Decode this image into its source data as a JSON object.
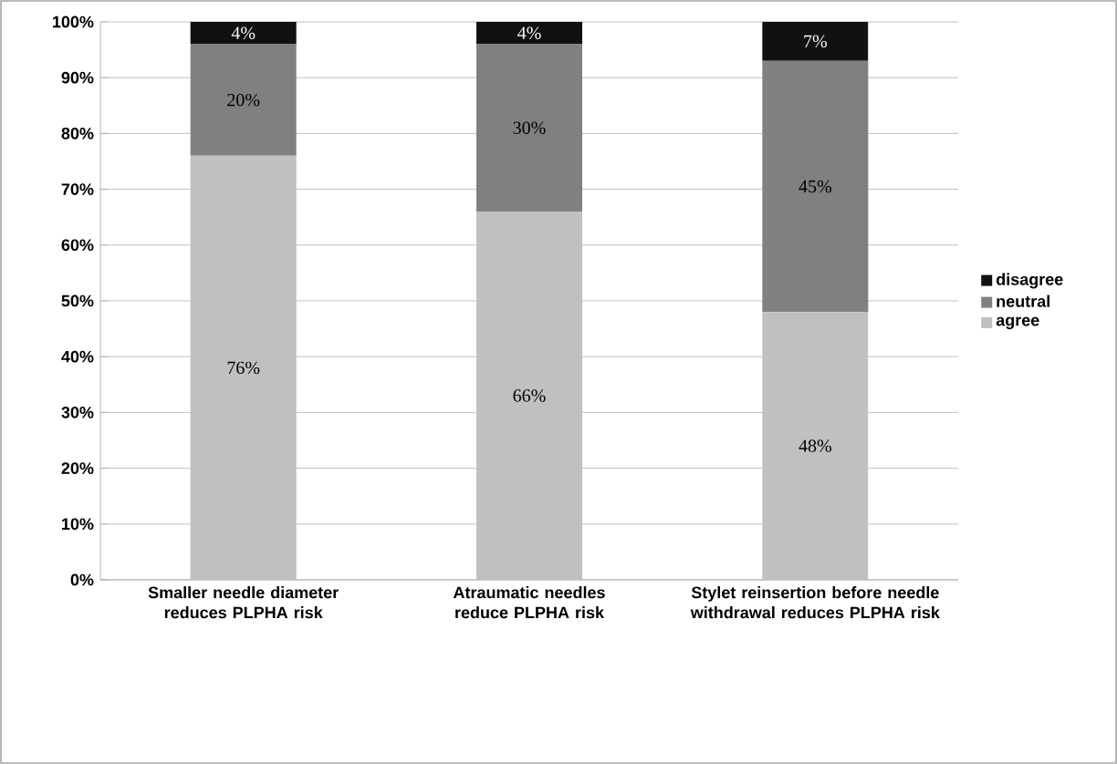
{
  "chart_data": {
    "type": "bar",
    "stacked": true,
    "categories": [
      "Smaller needle diameter reduces PLPHA risk",
      "Atraumatic needles reduce PLPHA risk",
      "Stylet reinsertion before needle withdrawal reduces PLPHA risk"
    ],
    "series": [
      {
        "name": "agree",
        "color": "#c0c0c0",
        "values": [
          76,
          66,
          48
        ],
        "value_labels": [
          "76%",
          "66%",
          "48%"
        ]
      },
      {
        "name": "neutral",
        "color": "#808080",
        "values": [
          20,
          30,
          45
        ],
        "value_labels": [
          "20%",
          "30%",
          "45%"
        ]
      },
      {
        "name": "disagree",
        "color": "#111111",
        "values": [
          4,
          4,
          7
        ],
        "value_labels": [
          "4%",
          "4%",
          "7%"
        ]
      }
    ],
    "ylim": [
      0,
      100
    ],
    "yticks": [
      {
        "value": 0,
        "label": "0%"
      },
      {
        "value": 10,
        "label": "10%"
      },
      {
        "value": 20,
        "label": "20%"
      },
      {
        "value": 30,
        "label": "30%"
      },
      {
        "value": 40,
        "label": "40%"
      },
      {
        "value": 50,
        "label": "50%"
      },
      {
        "value": 60,
        "label": "60%"
      },
      {
        "value": 70,
        "label": "70%"
      },
      {
        "value": 80,
        "label": "80%"
      },
      {
        "value": 90,
        "label": "90%"
      },
      {
        "value": 100,
        "label": "100%"
      }
    ],
    "grid": "y",
    "legend": "right"
  }
}
